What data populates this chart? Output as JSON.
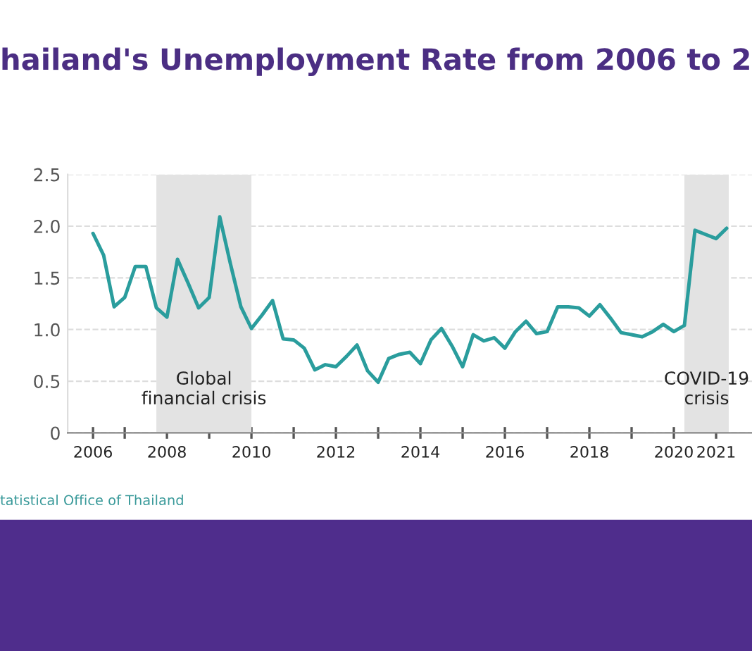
{
  "chart_data": {
    "type": "line",
    "title": "hailand's Unemployment Rate from 2006 to 2",
    "x": [
      2006.0,
      2006.25,
      2006.5,
      2006.75,
      2007.0,
      2007.25,
      2007.5,
      2007.75,
      2008.0,
      2008.25,
      2008.5,
      2008.75,
      2009.0,
      2009.25,
      2009.5,
      2009.75,
      2010.0,
      2010.25,
      2010.5,
      2010.75,
      2011.0,
      2011.25,
      2011.5,
      2011.75,
      2012.0,
      2012.25,
      2012.5,
      2012.75,
      2013.0,
      2013.25,
      2013.5,
      2013.75,
      2014.0,
      2014.25,
      2014.5,
      2014.75,
      2015.0,
      2015.25,
      2015.5,
      2015.75,
      2016.0,
      2016.25,
      2016.5,
      2016.75,
      2017.0,
      2017.25,
      2017.5,
      2017.75,
      2018.0,
      2018.25,
      2018.5,
      2018.75,
      2019.0,
      2019.25,
      2019.5,
      2019.75,
      2020.0,
      2020.25,
      2020.5,
      2020.75,
      2021.0
    ],
    "series": [
      {
        "color": "#2a9d9d",
        "values": [
          1.93,
          1.72,
          1.22,
          1.31,
          1.61,
          1.61,
          1.21,
          1.12,
          1.68,
          1.45,
          1.21,
          1.31,
          2.09,
          1.64,
          1.22,
          1.01,
          1.14,
          1.28,
          0.91,
          0.9,
          0.82,
          0.61,
          0.66,
          0.64,
          0.74,
          0.85,
          0.6,
          0.49,
          0.72,
          0.76,
          0.78,
          0.67,
          0.9,
          1.01,
          0.84,
          0.64,
          0.95,
          0.89,
          0.92,
          0.82,
          0.98,
          1.08,
          0.96,
          0.98,
          1.22,
          1.22,
          1.21,
          1.13,
          1.24,
          1.11,
          0.97,
          0.95,
          0.93,
          0.98,
          1.05,
          0.98,
          1.04,
          1.96,
          1.92,
          1.88,
          1.98
        ]
      }
    ],
    "xlim": [
      2005.4,
      2021.6
    ],
    "ylim": [
      0,
      2.5
    ],
    "xticks": [
      {
        "value": 2006.0,
        "label": "2006"
      },
      {
        "value": 2006.75,
        "label": null
      },
      {
        "value": 2007.75,
        "label": "2008"
      },
      {
        "value": 2008.75,
        "label": null
      },
      {
        "value": 2009.75,
        "label": "2010"
      },
      {
        "value": 2010.75,
        "label": null
      },
      {
        "value": 2011.75,
        "label": "2012"
      },
      {
        "value": 2012.75,
        "label": null
      },
      {
        "value": 2013.75,
        "label": "2014"
      },
      {
        "value": 2014.75,
        "label": null
      },
      {
        "value": 2015.75,
        "label": "2016"
      },
      {
        "value": 2016.75,
        "label": null
      },
      {
        "value": 2017.75,
        "label": "2018"
      },
      {
        "value": 2018.75,
        "label": null
      },
      {
        "value": 2019.75,
        "label": "2020"
      },
      {
        "value": 2020.75,
        "label": "2021"
      }
    ],
    "yticks": [
      0,
      0.5,
      {
        "value": 1,
        "label": "1.0"
      },
      1.5,
      {
        "value": 2,
        "label": "2.0"
      },
      2.5
    ],
    "bands": [
      {
        "axis": "x",
        "from": 2007.5,
        "to": 2009.75,
        "label": "Global\nfinancial crisis",
        "color": "#e3e3e3"
      },
      {
        "axis": "x",
        "from": 2020.0,
        "to": 2021.05,
        "label": "COVID-19\ncrisis",
        "color": "#e3e3e3"
      }
    ],
    "annotations": [
      "tatistical Office of Thailand"
    ],
    "grid": "y",
    "legend": false,
    "marker": "none",
    "line_style": "solid"
  }
}
